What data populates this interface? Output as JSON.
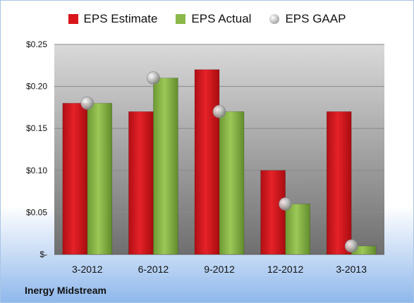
{
  "chart_data": {
    "type": "bar",
    "categories": [
      "3-2012",
      "6-2012",
      "9-2012",
      "12-2012",
      "3-2013"
    ],
    "series": [
      {
        "name": "EPS Estimate",
        "type": "bar",
        "values": [
          0.18,
          0.17,
          0.22,
          0.1,
          0.17
        ],
        "color": "#d8161c"
      },
      {
        "name": "EPS Actual",
        "type": "bar",
        "values": [
          0.18,
          0.21,
          0.17,
          0.06,
          0.01
        ],
        "color": "#8cb84a"
      },
      {
        "name": "EPS GAAP",
        "type": "scatter",
        "values": [
          0.18,
          0.21,
          0.17,
          0.06,
          0.01
        ],
        "color": "#b8b8b8"
      }
    ],
    "ylim": [
      0,
      0.25
    ],
    "yticks": [
      0,
      0.05,
      0.1,
      0.15,
      0.2,
      0.25
    ],
    "ytick_labels": [
      "$-",
      "$0.05",
      "$0.10",
      "$0.15",
      "$0.20",
      "$0.25"
    ],
    "grid": true,
    "legend_position": "top"
  },
  "footer": {
    "company": "Inergy Midstream"
  }
}
